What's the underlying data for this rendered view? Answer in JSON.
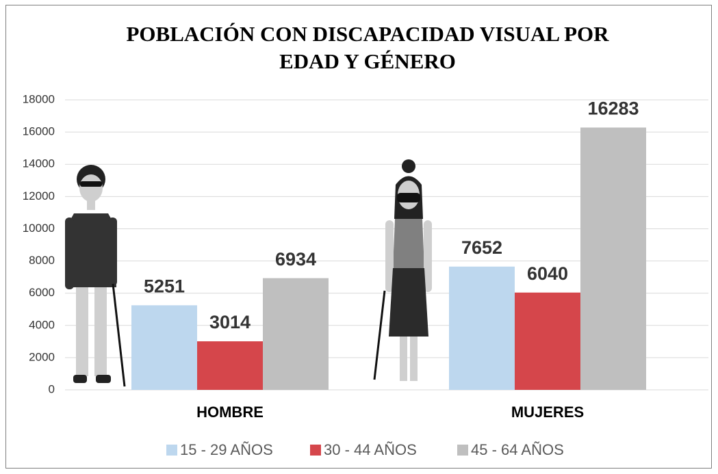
{
  "chart_data": {
    "type": "bar",
    "title": "POBLACIÓN CON DISCAPACIDAD VISUAL POR EDAD Y GÉNERO",
    "categories": [
      "HOMBRE",
      "MUJERES"
    ],
    "series": [
      {
        "name": "15 - 29 AÑOS",
        "color": "#bdd7ee",
        "values": [
          5251,
          7652
        ]
      },
      {
        "name": "30 - 44 AÑOS",
        "color": "#d5464b",
        "values": [
          3014,
          6040
        ]
      },
      {
        "name": "45 - 64 AÑOS",
        "color": "#bfbfbf",
        "values": [
          6934,
          16283
        ]
      }
    ],
    "ylim": [
      0,
      18000
    ],
    "yticks": [
      0,
      2000,
      4000,
      6000,
      8000,
      10000,
      12000,
      14000,
      16000,
      18000
    ],
    "grid": true,
    "legend": "bottom"
  }
}
